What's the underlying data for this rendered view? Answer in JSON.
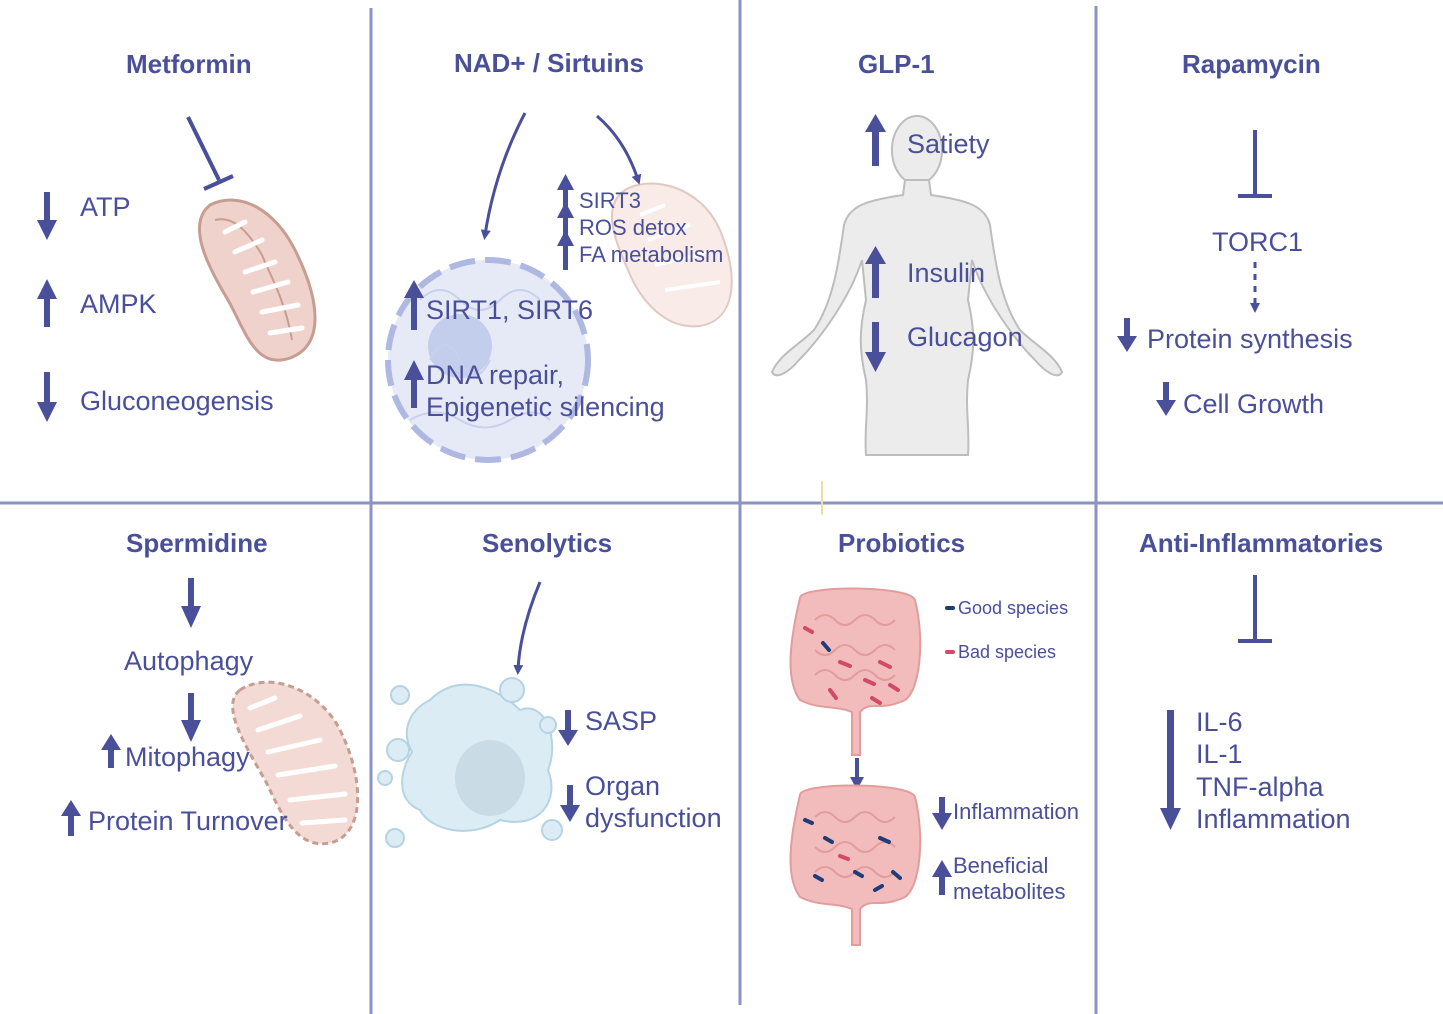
{
  "colors": {
    "accent": "#4a4f9a",
    "grid": "#8a93c4",
    "mito": "#c79d92",
    "cell": "#cfd6ef",
    "skin": "#e8e8e8",
    "gut": "#f2b9b9",
    "good": "#1f3c7a",
    "bad": "#d24a6a"
  },
  "metformin": {
    "title": "Metformin",
    "items": [
      "ATP",
      "AMPK",
      "Gluconeogensis"
    ]
  },
  "nad": {
    "title": "NAD+ / Sirtuins",
    "mito_items": [
      "SIRT3",
      "ROS detox",
      "FA metabolism"
    ],
    "nuc1": "SIRT1, SIRT6",
    "nuc2a": "DNA repair,",
    "nuc2b": "Epigenetic silencing"
  },
  "glp1": {
    "title": "GLP-1",
    "items": [
      "Satiety",
      "Insulin",
      "Glucagon"
    ]
  },
  "rapamycin": {
    "title": "Rapamycin",
    "target": "TORC1",
    "items": [
      "Protein synthesis",
      "Cell Growth"
    ]
  },
  "spermidine": {
    "title": "Spermidine",
    "items": [
      "Autophagy",
      "Mitophagy",
      "Protein Turnover"
    ]
  },
  "senolytics": {
    "title": "Senolytics",
    "items": [
      "SASP",
      "Organ",
      "dysfunction"
    ]
  },
  "probiotics": {
    "title": "Probiotics",
    "legend": [
      "Good species",
      "Bad species"
    ],
    "items": [
      "Inflammation",
      "Beneficial",
      "metabolites"
    ]
  },
  "antiinflam": {
    "title": "Anti-Inflammatories",
    "items": [
      "IL-6",
      "IL-1",
      "TNF-alpha",
      "Inflammation"
    ]
  }
}
